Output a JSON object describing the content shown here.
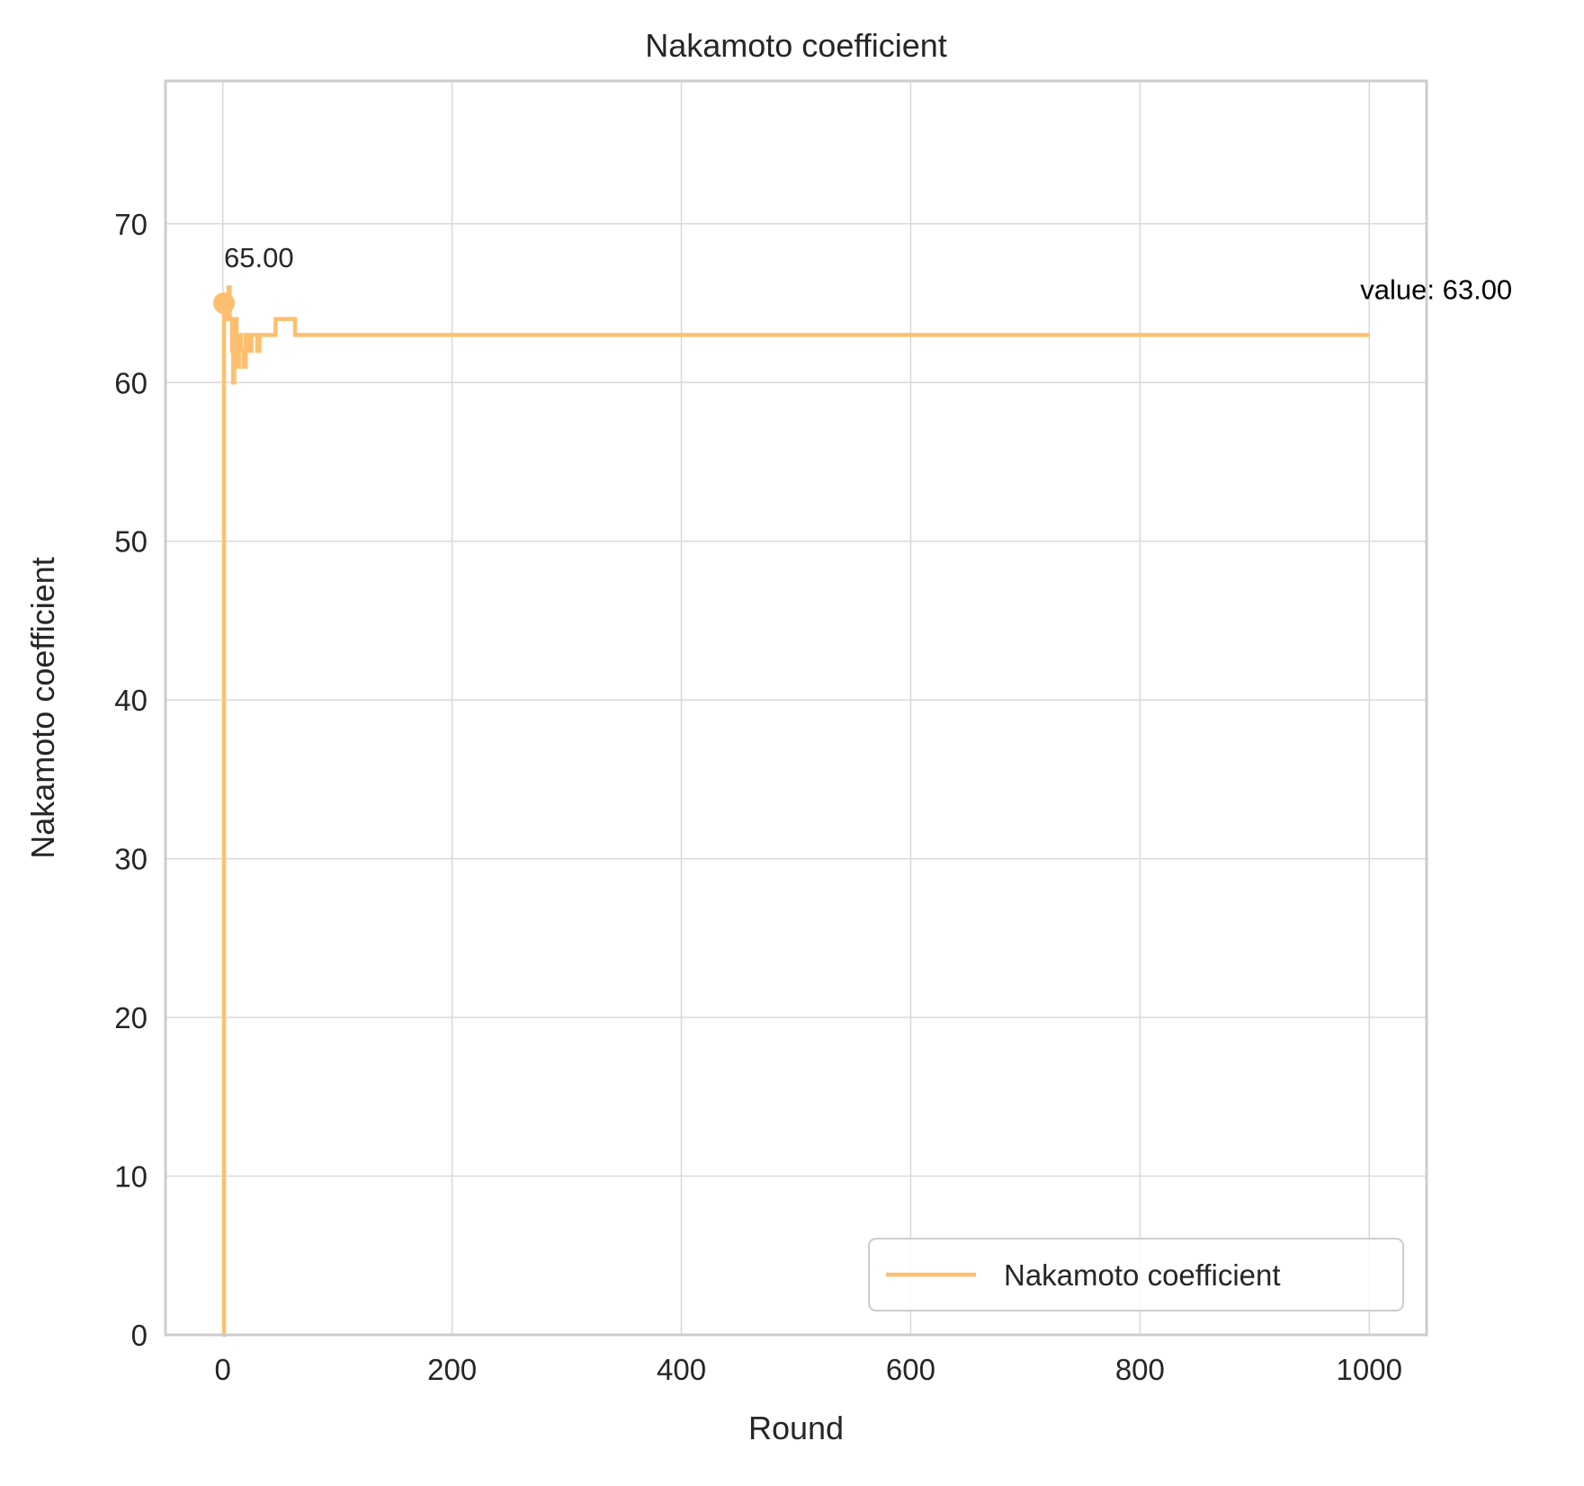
{
  "chart_data": {
    "type": "line",
    "title": "Nakamoto coefficient",
    "xlabel": "Round",
    "ylabel": "Nakamoto coefficient",
    "xlim": [
      -50,
      1050
    ],
    "ylim": [
      0,
      79
    ],
    "xticks": [
      0,
      200,
      400,
      600,
      800,
      1000
    ],
    "yticks": [
      0,
      10,
      20,
      30,
      40,
      50,
      60,
      70
    ],
    "grid": true,
    "legend_position": "lower-right",
    "series": [
      {
        "name": "Nakamoto coefficient",
        "color": "#fdbf6f",
        "step": true,
        "points": [
          [
            0,
            0
          ],
          [
            1,
            65
          ],
          [
            3,
            64
          ],
          [
            5,
            66
          ],
          [
            6,
            64
          ],
          [
            8,
            62
          ],
          [
            9,
            60
          ],
          [
            10,
            63
          ],
          [
            11,
            64
          ],
          [
            12,
            61
          ],
          [
            14,
            63
          ],
          [
            16,
            62
          ],
          [
            18,
            61
          ],
          [
            20,
            63
          ],
          [
            22,
            62
          ],
          [
            25,
            63
          ],
          [
            30,
            62
          ],
          [
            32,
            63
          ],
          [
            45,
            63
          ],
          [
            46,
            64
          ],
          [
            62,
            64
          ],
          [
            63,
            63
          ],
          [
            1000,
            63
          ]
        ]
      }
    ],
    "annotations": [
      {
        "text": "65.00",
        "x": 1,
        "y": 65,
        "marker": true
      },
      {
        "text": "value: 63.00",
        "x": 1000,
        "y": 63
      }
    ]
  },
  "colors": {
    "series": "#fdbf6f",
    "grid": "#d9d9d9",
    "frame": "#cccccc",
    "text": "#262626"
  }
}
